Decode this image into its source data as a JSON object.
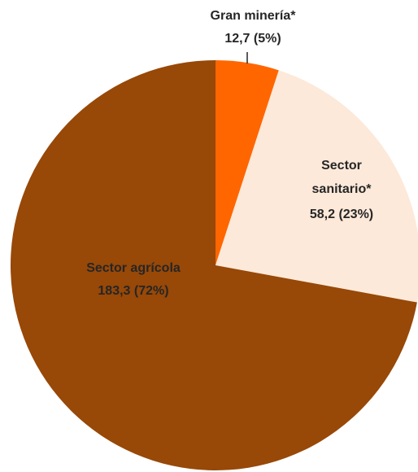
{
  "chart_data": {
    "type": "pie",
    "start_angle_deg": 0,
    "direction": "clockwise",
    "slices": [
      {
        "label": "Gran minería*",
        "value": 12.7,
        "value_label": "12,7 (5%)",
        "color": "#FF6600"
      },
      {
        "label": "Sector sanitario*",
        "value": 58.2,
        "value_label": "58,2 (23%)",
        "color": "#FDE9D9"
      },
      {
        "label": "Sector agrícola",
        "value": 183.3,
        "value_label": "183,3 (72%)",
        "color": "#984807"
      }
    ],
    "legend": "none"
  }
}
